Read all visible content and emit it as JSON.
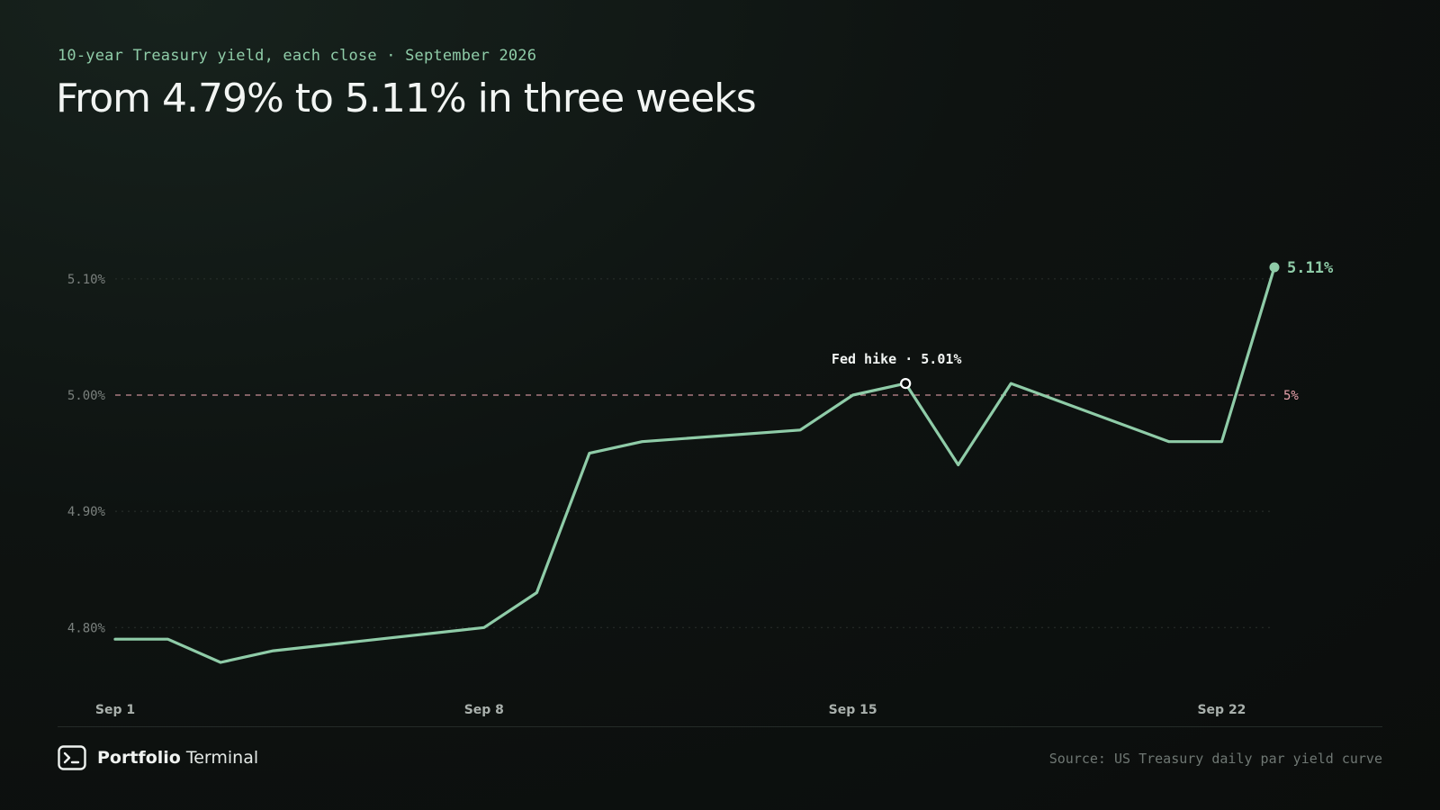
{
  "header": {
    "eyebrow": "10-year Treasury yield, each close · September 2026",
    "title": "From 4.79% to 5.11% in three weeks"
  },
  "footer": {
    "brand_bold": "Portfolio",
    "brand_light": "Terminal",
    "brand_icon": "terminal-prompt-icon",
    "source": "Source: US Treasury daily par yield curve"
  },
  "colors": {
    "line": "#8fcca8",
    "threshold": "#e8a3ad",
    "grid": "#2a302d",
    "tick_text": "#7b817e",
    "background": "#0b0d0c"
  },
  "chart_data": {
    "type": "line",
    "x_axis": {
      "range_days": [
        1,
        23
      ],
      "ticks": [
        {
          "day": 1,
          "label": "Sep 1"
        },
        {
          "day": 8,
          "label": "Sep 8"
        },
        {
          "day": 15,
          "label": "Sep 15"
        },
        {
          "day": 22,
          "label": "Sep 22"
        }
      ]
    },
    "y_axis": {
      "range": [
        4.77,
        5.11
      ],
      "unit": "%",
      "ticks": [
        {
          "value": 4.8,
          "label": "4.80%"
        },
        {
          "value": 4.9,
          "label": "4.90%"
        },
        {
          "value": 5.0,
          "label": "5.00%"
        },
        {
          "value": 5.1,
          "label": "5.10%"
        }
      ],
      "grid": true
    },
    "series": [
      {
        "values": [
          {
            "day": 1,
            "value": 4.79
          },
          {
            "day": 2,
            "value": 4.79
          },
          {
            "day": 3,
            "value": 4.77
          },
          {
            "day": 4,
            "value": 4.78
          },
          {
            "day": 8,
            "value": 4.8
          },
          {
            "day": 9,
            "value": 4.83
          },
          {
            "day": 10,
            "value": 4.95
          },
          {
            "day": 11,
            "value": 4.96
          },
          {
            "day": 14,
            "value": 4.97
          },
          {
            "day": 15,
            "value": 5.0
          },
          {
            "day": 16,
            "value": 5.01
          },
          {
            "day": 17,
            "value": 4.94
          },
          {
            "day": 18,
            "value": 5.01
          },
          {
            "day": 21,
            "value": 4.96
          },
          {
            "day": 22,
            "value": 4.96
          },
          {
            "day": 23,
            "value": 5.11
          }
        ]
      }
    ],
    "threshold": {
      "value": 5.0,
      "label": "5%"
    },
    "annotations": [
      {
        "day": 16,
        "value": 5.01,
        "label": "Fed hike · 5.01%"
      }
    ],
    "end_label": "5.11%"
  }
}
